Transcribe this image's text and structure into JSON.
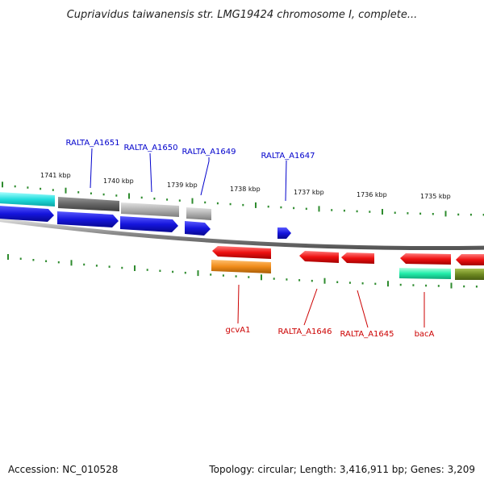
{
  "title": "Cupriavidus taiwanensis str. LMG19424 chromosome I, complete...",
  "footer": {
    "accession": "Accession: NC_010528",
    "topology": "Topology: circular; Length: 3,416,911 bp; Genes: 3,209"
  },
  "colors": {
    "backbone": "#8c8c8c",
    "tick": "#2e8b2e",
    "top_label": "#0000cc",
    "bottom_label": "#cc0000"
  },
  "tick_labels": [
    "1741 kbp",
    "1740 kbp",
    "1739 kbp",
    "1738 kbp",
    "1737 kbp",
    "1736 kbp",
    "1735 kbp"
  ],
  "gene_labels_top": [
    "RALTA_A1651",
    "RALTA_A1650",
    "RALTA_A1649",
    "RALTA_A1647"
  ],
  "gene_labels_bottom": [
    "gcvA1",
    "RALTA_A1646",
    "RALTA_A1645",
    "bacA"
  ],
  "features": [
    {
      "name": "feature-cyan",
      "color": "#22dddd"
    },
    {
      "name": "feature-darkgray",
      "color": "#666666"
    },
    {
      "name": "feature-lightgray",
      "color": "#aaaaaa"
    },
    {
      "name": "feature-gray-small",
      "color": "#999999"
    },
    {
      "name": "feature-blue",
      "color": "#1515dd"
    },
    {
      "name": "feature-red",
      "color": "#ee1111"
    },
    {
      "name": "feature-orange",
      "color": "#f08c1a"
    },
    {
      "name": "feature-aqua",
      "color": "#22eeaa"
    },
    {
      "name": "feature-olive",
      "color": "#6f8a22"
    }
  ]
}
